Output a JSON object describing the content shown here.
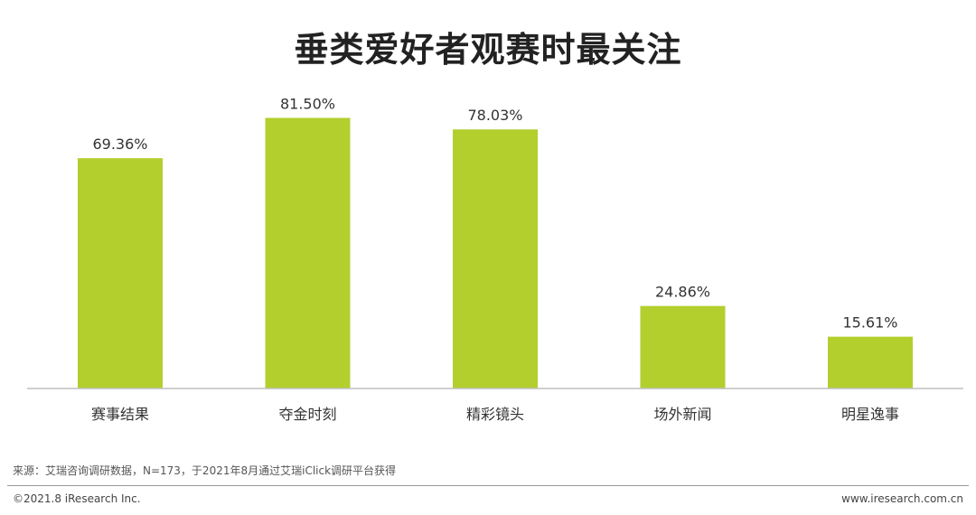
{
  "chart_data": {
    "type": "bar",
    "title": "垂类爱好者观赛时最关注",
    "categories": [
      "赛事结果",
      "夺金时刻",
      "精彩镜头",
      "场外新闻",
      "明星逸事"
    ],
    "values": [
      69.36,
      81.5,
      78.03,
      24.86,
      15.61
    ],
    "value_labels": [
      "69.36%",
      "81.50%",
      "78.03%",
      "24.86%",
      "15.61%"
    ],
    "unit": "%",
    "ylim": [
      0,
      100
    ],
    "bar_color": "#b2cf2e",
    "grid": false,
    "legend": "none"
  },
  "footer": {
    "source": "来源：艾瑞咨询调研数据，N=173，于2021年8月通过艾瑞iClick调研平台获得",
    "copyright": "©2021.8 iResearch Inc.",
    "website": "www.iresearch.com.cn"
  }
}
